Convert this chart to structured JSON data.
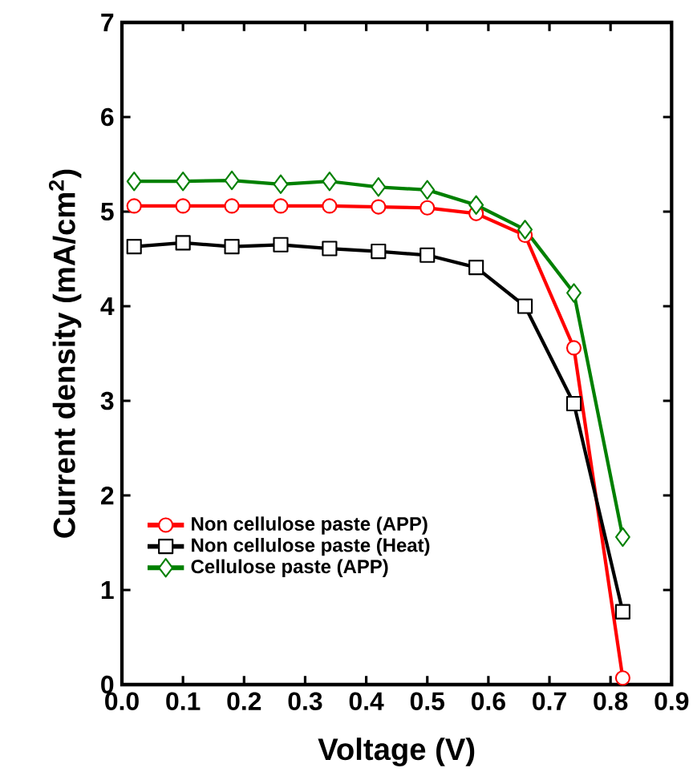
{
  "chart_data": {
    "type": "line",
    "xlabel": "Voltage (V)",
    "ylabel": "Current density (mA/cm$^{2}$)",
    "xlim": [
      0,
      0.9
    ],
    "ylim": [
      0,
      7
    ],
    "xticks": [
      {
        "value": 0,
        "label": "0.0"
      },
      {
        "value": 0.1,
        "label": "0.1"
      },
      {
        "value": 0.2,
        "label": "0.2"
      },
      {
        "value": 0.3,
        "label": "0.3"
      },
      {
        "value": 0.4,
        "label": "0.4"
      },
      {
        "value": 0.5,
        "label": "0.5"
      },
      {
        "value": 0.6,
        "label": "0.6"
      },
      {
        "value": 0.7,
        "label": "0.7"
      },
      {
        "value": 0.8,
        "label": "0.8"
      },
      {
        "value": 0.9,
        "label": "0.9"
      }
    ],
    "yticks": [
      0,
      1,
      2,
      3,
      4,
      5,
      6,
      7
    ],
    "x": [
      0.02,
      0.1,
      0.18,
      0.26,
      0.34,
      0.42,
      0.5,
      0.58,
      0.66,
      0.74,
      0.82
    ],
    "series": [
      {
        "name": "Non cellulose paste (APP)",
        "color": "#ff0000",
        "marker": "circle",
        "values": [
          5.06,
          5.06,
          5.06,
          5.06,
          5.06,
          5.05,
          5.04,
          4.98,
          4.75,
          3.56,
          0.07
        ]
      },
      {
        "name": "Non cellulose paste (Heat)",
        "color": "#000000",
        "marker": "square",
        "values": [
          4.63,
          4.67,
          4.63,
          4.65,
          4.61,
          4.58,
          4.54,
          4.41,
          4.0,
          2.97,
          0.77
        ]
      },
      {
        "name": "Cellulose paste (APP)",
        "color": "#008000",
        "marker": "diamond",
        "values": [
          5.32,
          5.32,
          5.33,
          5.29,
          5.32,
          5.26,
          5.23,
          5.07,
          4.81,
          4.14,
          1.56
        ]
      }
    ],
    "grid": false,
    "legend": "bottom left"
  }
}
